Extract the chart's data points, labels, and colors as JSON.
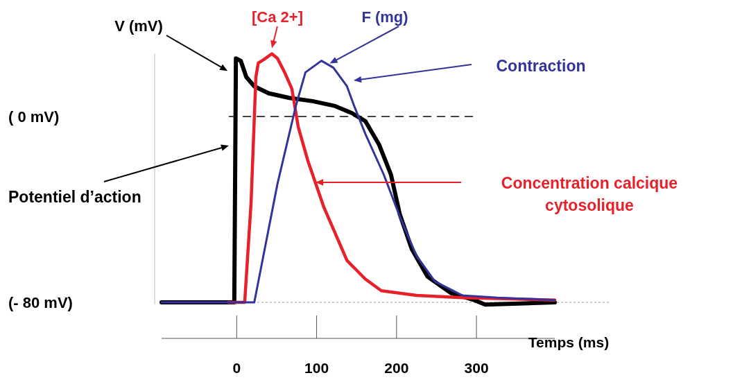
{
  "chart_data": {
    "type": "line",
    "xlabel": "Temps (ms)",
    "xlim": [
      -94,
      398
    ],
    "xticks": [
      0,
      100,
      200,
      300
    ],
    "ylim": [
      -81,
      27
    ],
    "yticks": [
      {
        "value": 0,
        "label": "( 0 mV)"
      },
      {
        "value": -80,
        "label": "(- 80 mV)"
      }
    ],
    "series": [
      {
        "name": "V (mV)",
        "color": "#000000",
        "x": [
          -94,
          -3,
          -1,
          5,
          12,
          22,
          40,
          66,
          95,
          123,
          144,
          161,
          178,
          193,
          204,
          219,
          239,
          268,
          297,
          311,
          398
        ],
        "values": [
          -80,
          -80,
          25,
          24,
          17,
          13,
          10,
          8,
          6.6,
          4.5,
          1.5,
          -2,
          -12,
          -25,
          -42,
          -57,
          -69,
          -76,
          -79,
          -81,
          -80
        ]
      },
      {
        "name": "[Ca 2+]",
        "color": "#e8202a",
        "x": [
          -10,
          10,
          18,
          24,
          27,
          34,
          44,
          51,
          60,
          69,
          77,
          89,
          109,
          138,
          161,
          181,
          225,
          282,
          398
        ],
        "values": [
          -80,
          -80,
          -37,
          17,
          23,
          24.5,
          27,
          25,
          19,
          12,
          -4.5,
          -19,
          -39,
          -62,
          -70,
          -75,
          -77,
          -78,
          -79
        ]
      },
      {
        "name": "F (mg)",
        "color": "#33339a",
        "x": [
          -94,
          22,
          51,
          74,
          86,
          106,
          121,
          138,
          147,
          161,
          184,
          204,
          225,
          248,
          282,
          326,
          398
        ],
        "values": [
          -80,
          -80,
          -29,
          4.5,
          19,
          24,
          21,
          13,
          4.5,
          -7.5,
          -25,
          -43,
          -60,
          -71,
          -77,
          -78,
          -79
        ]
      }
    ],
    "ref_lines": [
      {
        "axis": "y",
        "value": 0,
        "color": "#444444",
        "line_style": "dashed"
      },
      {
        "axis": "y",
        "value": -80,
        "color": "#999999",
        "line_style": "dotted"
      }
    ],
    "annotations": [
      "Potentiel d’action",
      "Concentration calcique cytosolique",
      "Contraction"
    ]
  }
}
